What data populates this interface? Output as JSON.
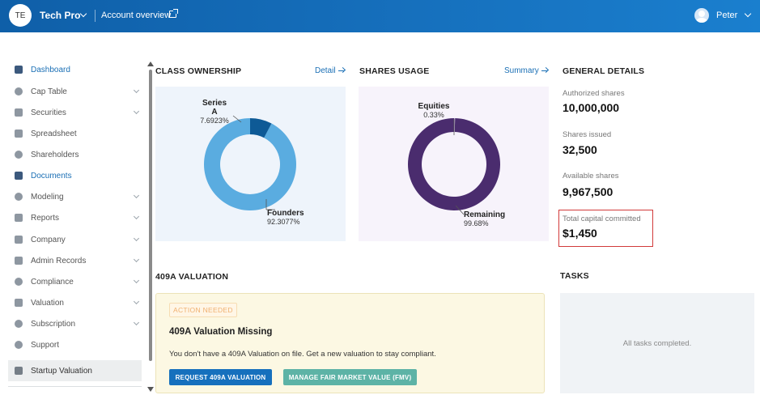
{
  "topbar": {
    "company_initials": "TE",
    "company_name": "Tech Pro",
    "account_link": "Account overview",
    "user_name": "Peter"
  },
  "sidebar": {
    "items": [
      {
        "label": "Dashboard",
        "icon": "dashboard-icon"
      },
      {
        "label": "Cap Table",
        "icon": "pie-chart-icon"
      },
      {
        "label": "Securities",
        "icon": "certificate-icon"
      },
      {
        "label": "Spreadsheet",
        "icon": "spreadsheet-icon"
      },
      {
        "label": "Shareholders",
        "icon": "user-icon"
      },
      {
        "label": "Documents",
        "icon": "folder-icon"
      },
      {
        "label": "Modeling",
        "icon": "lightbulb-icon"
      },
      {
        "label": "Reports",
        "icon": "report-icon"
      },
      {
        "label": "Company",
        "icon": "building-icon"
      },
      {
        "label": "Admin Records",
        "icon": "records-icon"
      },
      {
        "label": "Compliance",
        "icon": "shield-icon"
      },
      {
        "label": "Valuation",
        "icon": "bar-chart-icon"
      },
      {
        "label": "Subscription",
        "icon": "dollar-icon"
      },
      {
        "label": "Support",
        "icon": "help-icon"
      },
      {
        "label": "Startup Valuation",
        "icon": "document-icon"
      }
    ]
  },
  "class_ownership": {
    "title": "CLASS OWNERSHIP",
    "link": "Detail",
    "series_a_label": "Series",
    "series_a_label2": "A",
    "series_a_pct": "7.6923%",
    "founders_label": "Founders",
    "founders_pct": "92.3077%",
    "colors": {
      "founders": "#5aace0",
      "series_a": "#0e5a96"
    }
  },
  "shares_usage": {
    "title": "SHARES USAGE",
    "link": "Summary",
    "equities_label": "Equities",
    "equities_pct": "0.33%",
    "remaining_label": "Remaining",
    "remaining_pct": "99.68%",
    "colors": {
      "remaining": "#4a2c6e"
    }
  },
  "chart_data": [
    {
      "type": "pie",
      "title": "CLASS OWNERSHIP",
      "categories": [
        "Founders",
        "Series A"
      ],
      "values": [
        92.3077,
        7.6923
      ]
    },
    {
      "type": "pie",
      "title": "SHARES USAGE",
      "categories": [
        "Remaining",
        "Equities"
      ],
      "values": [
        99.68,
        0.33
      ]
    }
  ],
  "general_details": {
    "title": "GENERAL DETAILS",
    "authorized_label": "Authorized shares",
    "authorized_value": "10,000,000",
    "issued_label": "Shares issued",
    "issued_value": "32,500",
    "available_label": "Available shares",
    "available_value": "9,967,500",
    "capital_label": "Total capital committed",
    "capital_value": "$1,450"
  },
  "valuation": {
    "title": "409A VALUATION",
    "badge": "ACTION NEEDED",
    "heading": "409A Valuation Missing",
    "text": "You don't have a 409A Valuation on file. Get a new valuation to stay compliant.",
    "primary_button": "REQUEST 409A VALUATION",
    "secondary_button": "MANAGE FAIR MARKET VALUE (FMV)"
  },
  "tasks": {
    "title": "TASKS",
    "empty_text": "All tasks completed."
  }
}
